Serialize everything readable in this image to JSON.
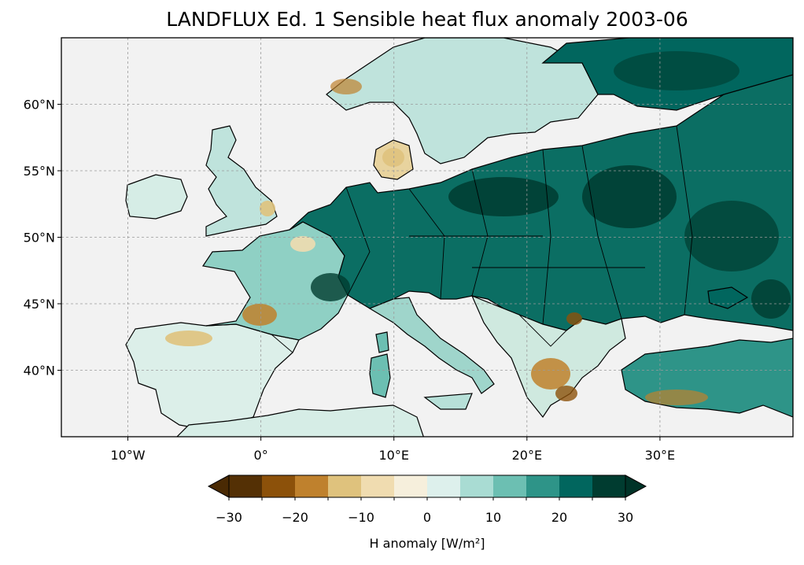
{
  "title": "LANDFLUX Ed. 1 Sensible heat flux anomaly 2003-06",
  "map": {
    "projection": "PlateCarree",
    "lon_range": [
      -15,
      40
    ],
    "lat_range": [
      35,
      65
    ],
    "ocean_color": "#f2f2f2",
    "gridlines": true,
    "coastlines": true,
    "borders": true,
    "lon_ticks": [
      {
        "value": -10,
        "label": "10°W"
      },
      {
        "value": 0,
        "label": "0°"
      },
      {
        "value": 10,
        "label": "10°E"
      },
      {
        "value": 20,
        "label": "20°E"
      },
      {
        "value": 30,
        "label": "30°E"
      }
    ],
    "lat_ticks": [
      {
        "value": 40,
        "label": "40°N"
      },
      {
        "value": 45,
        "label": "45°N"
      },
      {
        "value": 50,
        "label": "50°N"
      },
      {
        "value": 55,
        "label": "55°N"
      },
      {
        "value": 60,
        "label": "60°N"
      }
    ]
  },
  "colorbar": {
    "label": "H anomaly [W/m²]",
    "range": [
      -30,
      30
    ],
    "extend": "both",
    "bounds": [
      -30,
      -25,
      -20,
      -15,
      -10,
      -5,
      0,
      5,
      10,
      15,
      20,
      25,
      30
    ],
    "colors": [
      "#543005",
      "#8c510a",
      "#bf812d",
      "#dfc27d",
      "#f0dcb0",
      "#f6efdc",
      "#ddf0ec",
      "#a9dcd3",
      "#6cbfb2",
      "#2e9488",
      "#01665e",
      "#003c30"
    ],
    "under_color": "#4a2a04",
    "over_color": "#003328",
    "tick_labels": [
      {
        "value": -30,
        "label": "−30"
      },
      {
        "value": -20,
        "label": "−20"
      },
      {
        "value": -10,
        "label": "−10"
      },
      {
        "value": 0,
        "label": "0"
      },
      {
        "value": 10,
        "label": "10"
      },
      {
        "value": 20,
        "label": "20"
      },
      {
        "value": 30,
        "label": "30"
      }
    ]
  }
}
